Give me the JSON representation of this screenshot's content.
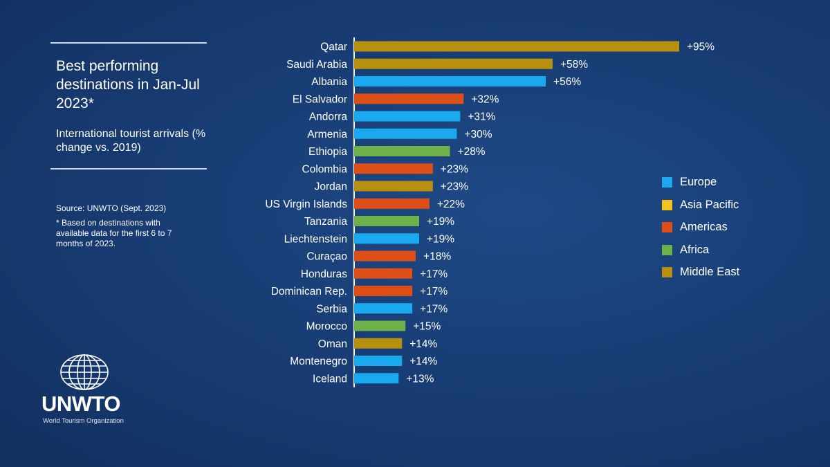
{
  "panel": {
    "title": "Best performing destinations in Jan-Jul 2023*",
    "subtitle": "International tourist arrivals (% change vs. 2019)",
    "source": "Source: UNWTO (Sept. 2023)",
    "footnote": "*  Based on destinations with available data for the first 6 to 7 months of 2023."
  },
  "logo": {
    "wordmark": "UNWTO",
    "tagline": "World Tourism Organization",
    "icon": "globe-icon"
  },
  "colors": {
    "Europe": "#1aa9ee",
    "Asia Pacific": "#f4c21a",
    "Americas": "#dd4f17",
    "Africa": "#6eb04a",
    "Middle East": "#b8900f",
    "axis": "#ffffff",
    "background": "#183d75"
  },
  "legend": [
    {
      "label": "Europe"
    },
    {
      "label": "Asia Pacific"
    },
    {
      "label": "Americas"
    },
    {
      "label": "Africa"
    },
    {
      "label": "Middle East"
    }
  ],
  "chart_data": {
    "type": "bar",
    "orientation": "horizontal",
    "title": "Best performing destinations in Jan-Jul 2023*",
    "categories": [
      "Qatar",
      "Saudi Arabia",
      "Albania",
      "El Salvador",
      "Andorra",
      "Armenia",
      "Ethiopia",
      "Colombia",
      "Jordan",
      "US Virgin Islands",
      "Tanzania",
      "Liechtenstein",
      "Curaçao",
      "Honduras",
      "Dominican Rep.",
      "Serbia",
      "Morocco",
      "Oman",
      "Montenegro",
      "Iceland"
    ],
    "values": [
      95,
      58,
      56,
      32,
      31,
      30,
      28,
      23,
      23,
      22,
      19,
      19,
      18,
      17,
      17,
      17,
      15,
      14,
      14,
      13
    ],
    "value_labels": [
      "+95%",
      "+58%",
      "+56%",
      "+32%",
      "+31%",
      "+30%",
      "+28%",
      "+23%",
      "+23%",
      "+22%",
      "+19%",
      "+19%",
      "+18%",
      "+17%",
      "+17%",
      "+17%",
      "+15%",
      "+14%",
      "+14%",
      "+13%"
    ],
    "regions": [
      "Middle East",
      "Middle East",
      "Europe",
      "Americas",
      "Europe",
      "Europe",
      "Africa",
      "Americas",
      "Middle East",
      "Americas",
      "Africa",
      "Europe",
      "Americas",
      "Americas",
      "Americas",
      "Europe",
      "Africa",
      "Middle East",
      "Europe",
      "Europe"
    ],
    "xlim": [
      0,
      95
    ],
    "grid": false,
    "legend_position": "right"
  }
}
